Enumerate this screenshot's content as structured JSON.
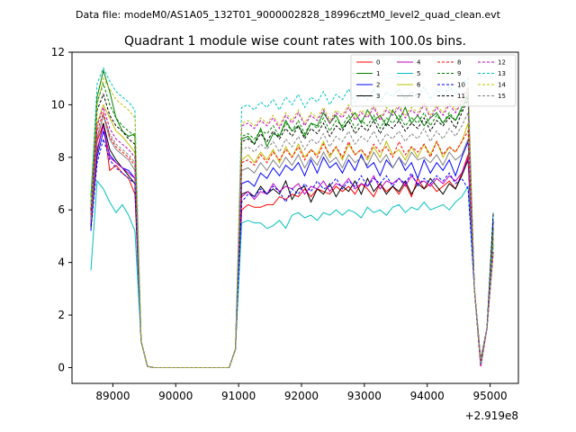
{
  "chart_data": {
    "type": "line",
    "suptitle": "Data file: modeM0/AS1A05_132T01_9000002828_18996cztM0_level2_quad_clean.evt",
    "title": "Quadrant 1 module wise count rates with 100.0s bins.",
    "xlabel": "",
    "ylabel": "",
    "offset_text": "+2.919e8",
    "xlim": [
      88350,
      95450
    ],
    "ylim": [
      -0.6,
      12.0
    ],
    "xticks": [
      89000,
      90000,
      91000,
      92000,
      93000,
      94000,
      95000
    ],
    "xtick_labels": [
      "89000",
      "90000",
      "91000",
      "92000",
      "93000",
      "94000",
      "95000"
    ],
    "yticks": [
      0,
      2,
      4,
      6,
      8,
      10,
      12
    ],
    "ytick_labels": [
      "0",
      "2",
      "4",
      "6",
      "8",
      "10",
      "12"
    ],
    "legend_position": "top-right",
    "grid": false,
    "x_start": 88650,
    "x_step": 100,
    "series": [
      {
        "name": "0",
        "color": "#ff0000",
        "dash": false,
        "pre": [
          5.6,
          8.6,
          9.3,
          7.5,
          7.7,
          7.4,
          7.2,
          6.6
        ],
        "post": [
          6.0,
          6.2,
          6.1,
          6.1,
          6.2,
          6.2,
          6.5,
          6.4,
          6.6,
          6.5,
          6.8,
          6.5,
          6.8,
          6.7,
          6.6,
          6.9,
          6.7,
          6.9,
          6.6,
          7.0,
          6.8,
          6.5,
          7.0,
          6.7,
          6.9,
          6.6,
          7.0,
          6.5,
          7.2,
          6.8,
          7.0,
          6.7,
          6.9,
          7.1,
          6.8,
          7.4,
          8.1
        ]
      },
      {
        "name": "1",
        "color": "#008000",
        "dash": false,
        "pre": [
          6.5,
          10.3,
          11.3,
          10.5,
          9.5,
          9.0,
          8.8,
          8.9
        ],
        "post": [
          8.7,
          8.8,
          8.5,
          9.1,
          8.4,
          8.9,
          8.8,
          9.4,
          9.0,
          9.2,
          8.8,
          9.3,
          9.2,
          9.7,
          9.3,
          9.6,
          9.1,
          9.4,
          9.7,
          9.3,
          9.8,
          9.4,
          9.6,
          9.2,
          9.8,
          9.4,
          9.9,
          9.3,
          9.6,
          9.2,
          9.5,
          9.7,
          9.3,
          9.6,
          9.4,
          9.9,
          10.4
        ]
      },
      {
        "name": "2",
        "color": "#0000ff",
        "dash": false,
        "pre": [
          5.4,
          8.0,
          9.0,
          8.1,
          7.8,
          7.6,
          7.5,
          7.2
        ],
        "post": [
          7.0,
          7.1,
          6.9,
          7.4,
          7.2,
          7.6,
          7.3,
          7.7,
          7.5,
          7.8,
          7.3,
          7.9,
          7.4,
          8.0,
          7.6,
          7.8,
          7.4,
          7.9,
          7.5,
          8.1,
          7.6,
          7.8,
          7.3,
          7.9,
          7.6,
          8.0,
          7.5,
          7.8,
          7.2,
          7.9,
          7.4,
          7.8,
          7.5,
          7.9,
          7.3,
          8.0,
          8.6
        ]
      },
      {
        "name": "3",
        "color": "#000000",
        "dash": false,
        "pre": [
          5.3,
          8.2,
          9.3,
          8.3,
          7.9,
          7.6,
          7.3,
          7.0
        ],
        "post": [
          6.6,
          6.7,
          6.5,
          6.9,
          6.6,
          6.8,
          6.6,
          7.1,
          6.4,
          6.8,
          6.9,
          6.3,
          6.8,
          6.6,
          7.0,
          6.5,
          6.9,
          6.7,
          7.1,
          6.6,
          7.2,
          6.7,
          7.0,
          6.6,
          6.9,
          6.7,
          7.1,
          6.6,
          7.0,
          6.8,
          7.2,
          6.9,
          6.6,
          7.0,
          6.8,
          7.3,
          7.9
        ]
      },
      {
        "name": "4",
        "color": "#bf00bf",
        "dash": false,
        "pre": [
          5.5,
          8.3,
          9.2,
          8.0,
          7.8,
          7.6,
          7.4,
          7.2
        ],
        "post": [
          6.5,
          6.7,
          6.4,
          6.7,
          6.6,
          7.0,
          6.7,
          6.9,
          6.8,
          7.0,
          6.6,
          6.9,
          6.8,
          7.1,
          6.7,
          7.0,
          6.9,
          7.2,
          6.8,
          7.0,
          6.9,
          7.3,
          6.8,
          7.1,
          7.0,
          7.2,
          6.9,
          7.3,
          7.0,
          7.1,
          6.9,
          7.2,
          7.0,
          7.3,
          7.1,
          7.4,
          8.0
        ]
      },
      {
        "name": "5",
        "color": "#00bfbf",
        "dash": false,
        "pre": [
          3.7,
          7.1,
          6.8,
          6.3,
          5.9,
          6.2,
          5.8,
          5.2
        ],
        "post": [
          5.5,
          5.6,
          5.5,
          5.5,
          5.3,
          5.4,
          5.6,
          5.3,
          5.8,
          5.9,
          5.7,
          5.8,
          5.6,
          5.9,
          5.8,
          6.0,
          5.8,
          6.0,
          5.9,
          5.7,
          6.1,
          5.9,
          6.0,
          5.8,
          6.1,
          6.2,
          5.9,
          6.1,
          6.0,
          6.3,
          6.0,
          6.1,
          6.2,
          6.0,
          6.3,
          6.5,
          6.9
        ]
      },
      {
        "name": "6",
        "color": "#bfbf00",
        "dash": false,
        "pre": [
          6.0,
          9.3,
          10.0,
          9.5,
          9.0,
          8.8,
          8.5,
          8.2
        ],
        "post": [
          7.9,
          8.1,
          7.8,
          8.2,
          7.9,
          8.3,
          7.8,
          8.4,
          8.0,
          8.5,
          8.0,
          8.3,
          8.1,
          8.6,
          8.0,
          8.4,
          7.9,
          8.5,
          8.1,
          8.3,
          7.9,
          8.4,
          8.0,
          8.6,
          8.1,
          8.3,
          7.9,
          8.4,
          8.0,
          8.5,
          8.1,
          8.6,
          8.0,
          8.4,
          8.2,
          8.6,
          9.3
        ]
      },
      {
        "name": "7",
        "color": "#808080",
        "dash": false,
        "pre": [
          5.6,
          8.7,
          9.6,
          8.7,
          8.3,
          8.1,
          7.9,
          7.5
        ],
        "post": [
          7.5,
          7.6,
          7.4,
          7.8,
          7.5,
          7.9,
          7.6,
          8.0,
          7.7,
          8.1,
          7.6,
          8.0,
          7.7,
          8.2,
          7.8,
          8.0,
          7.6,
          8.1,
          7.8,
          8.0,
          7.7,
          8.2,
          7.8,
          8.1,
          7.6,
          8.0,
          7.7,
          8.2,
          7.9,
          8.0,
          7.8,
          8.1,
          7.7,
          8.2,
          7.9,
          8.1,
          8.7
        ]
      },
      {
        "name": "8",
        "color": "#ff0000",
        "dash": true,
        "pre": [
          5.8,
          9.0,
          9.7,
          8.8,
          8.4,
          8.2,
          8.0,
          7.7
        ],
        "post": [
          7.8,
          7.9,
          7.7,
          8.1,
          7.8,
          8.2,
          7.9,
          8.3,
          8.0,
          8.4,
          7.9,
          8.3,
          8.0,
          8.5,
          8.1,
          8.4,
          8.0,
          8.6,
          8.1,
          8.3,
          8.0,
          8.5,
          8.2,
          8.4,
          8.0,
          8.6,
          8.1,
          8.4,
          8.2,
          8.5,
          8.0,
          8.6,
          8.1,
          8.4,
          8.2,
          8.6,
          9.0
        ]
      },
      {
        "name": "9",
        "color": "#008000",
        "dash": true,
        "pre": [
          6.3,
          10.1,
          10.8,
          10.0,
          9.5,
          9.2,
          9.0,
          8.8
        ],
        "post": [
          8.8,
          8.9,
          8.7,
          9.0,
          8.9,
          9.2,
          8.8,
          9.3,
          9.0,
          9.4,
          8.9,
          9.3,
          9.1,
          9.5,
          9.0,
          9.4,
          9.2,
          9.6,
          9.1,
          9.4,
          9.2,
          9.6,
          9.1,
          9.5,
          9.3,
          9.6,
          9.2,
          9.5,
          9.3,
          9.7,
          9.2,
          9.6,
          9.3,
          9.7,
          9.4,
          9.8,
          10.3
        ]
      },
      {
        "name": "10",
        "color": "#0000ff",
        "dash": true,
        "pre": [
          5.2,
          7.8,
          8.7,
          7.9,
          7.6,
          7.4,
          7.2,
          7.0
        ],
        "post": [
          6.3,
          6.6,
          6.5,
          6.8,
          6.6,
          6.9,
          6.7,
          6.3,
          6.8,
          6.6,
          7.0,
          6.7,
          7.1,
          6.8,
          6.9,
          7.2,
          6.8,
          7.1,
          6.9,
          7.3,
          6.9,
          7.2,
          7.0,
          7.3,
          6.9,
          7.2,
          7.0,
          7.4,
          6.9,
          7.2,
          7.0,
          7.3,
          7.1,
          7.4,
          7.0,
          7.2,
          6.8
        ]
      },
      {
        "name": "11",
        "color": "#000000",
        "dash": true,
        "pre": [
          6.0,
          9.8,
          10.4,
          9.6,
          9.2,
          9.0,
          8.7,
          8.5
        ],
        "post": [
          8.6,
          8.7,
          8.5,
          8.9,
          8.6,
          9.0,
          8.7,
          9.1,
          8.8,
          9.2,
          8.7,
          9.1,
          8.9,
          9.3,
          8.8,
          9.2,
          9.0,
          9.4,
          8.9,
          9.2,
          9.0,
          9.4,
          8.9,
          9.3,
          9.1,
          9.4,
          9.0,
          9.3,
          9.1,
          9.5,
          9.0,
          9.4,
          9.2,
          9.5,
          9.1,
          9.7,
          10.2
        ]
      },
      {
        "name": "12",
        "color": "#bf00bf",
        "dash": true,
        "pre": [
          5.9,
          9.2,
          9.9,
          9.1,
          8.7,
          8.5,
          8.3,
          8.0
        ],
        "post": [
          9.2,
          9.3,
          9.1,
          9.4,
          9.2,
          9.5,
          9.1,
          9.6,
          9.3,
          9.7,
          9.2,
          9.6,
          9.4,
          9.8,
          9.3,
          9.7,
          9.5,
          9.9,
          9.4,
          9.7,
          9.5,
          9.9,
          9.4,
          9.8,
          9.6,
          9.9,
          9.5,
          9.8,
          9.6,
          10.0,
          9.5,
          9.9,
          9.6,
          10.0,
          9.7,
          10.1,
          10.6
        ]
      },
      {
        "name": "13",
        "color": "#00bfbf",
        "dash": true,
        "pre": [
          6.3,
          10.8,
          11.4,
          10.9,
          10.5,
          10.3,
          10.1,
          9.8
        ],
        "post": [
          9.9,
          10.0,
          9.8,
          10.1,
          9.9,
          10.2,
          9.8,
          10.3,
          10.0,
          10.4,
          9.9,
          10.3,
          10.1,
          10.5,
          10.0,
          10.4,
          10.2,
          10.6,
          10.1,
          10.4,
          10.2,
          10.6,
          10.1,
          10.5,
          10.3,
          10.6,
          10.2,
          10.5,
          10.3,
          10.7,
          10.2,
          10.6,
          10.3,
          10.7,
          10.4,
          10.8,
          11.0
        ]
      },
      {
        "name": "14",
        "color": "#bfbf00",
        "dash": true,
        "pre": [
          6.2,
          10.0,
          11.0,
          10.6,
          10.2,
          10.0,
          9.8,
          9.5
        ],
        "post": [
          9.3,
          9.4,
          9.2,
          9.5,
          9.3,
          9.6,
          9.2,
          9.7,
          9.4,
          9.8,
          9.3,
          9.7,
          9.5,
          9.9,
          9.4,
          9.8,
          9.6,
          10.0,
          9.5,
          9.8,
          9.6,
          10.0,
          9.5,
          9.9,
          9.7,
          10.0,
          9.6,
          9.9,
          9.7,
          10.1,
          9.6,
          10.0,
          9.7,
          10.1,
          9.8,
          10.2,
          10.7
        ]
      },
      {
        "name": "15",
        "color": "#808080",
        "dash": true,
        "pre": [
          5.7,
          8.8,
          9.6,
          8.9,
          8.5,
          8.3,
          8.1,
          7.8
        ],
        "post": [
          8.3,
          8.4,
          8.2,
          8.5,
          8.3,
          8.6,
          8.2,
          8.7,
          8.4,
          8.8,
          8.3,
          8.7,
          8.5,
          8.9,
          8.4,
          8.8,
          8.6,
          9.0,
          8.5,
          8.8,
          8.6,
          9.0,
          8.5,
          8.9,
          8.7,
          9.0,
          8.6,
          8.9,
          8.7,
          9.1,
          8.6,
          9.0,
          8.7,
          9.1,
          8.8,
          9.2,
          9.7
        ]
      }
    ]
  }
}
